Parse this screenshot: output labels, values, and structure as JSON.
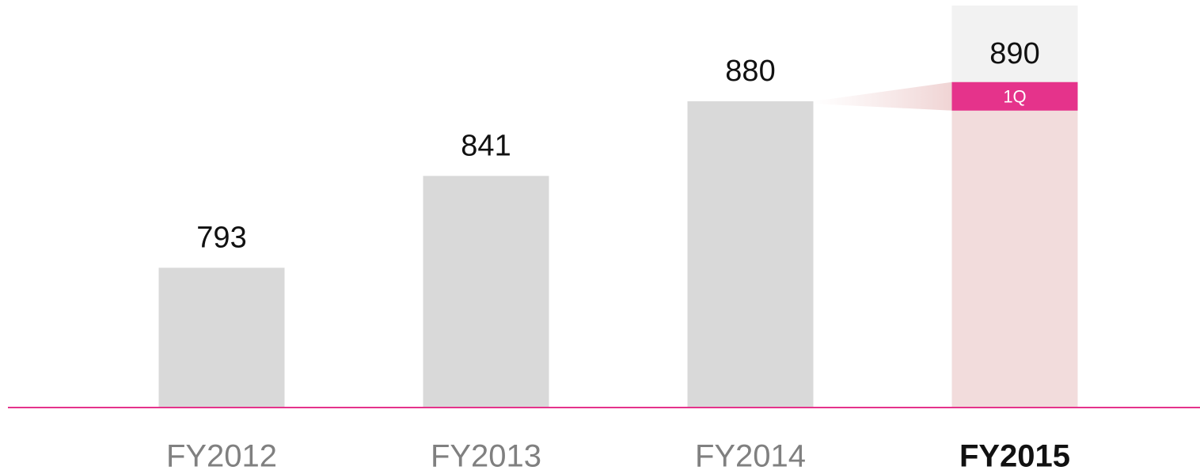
{
  "chart_data": {
    "type": "bar",
    "categories": [
      "FY2012",
      "FY2013",
      "FY2014",
      "FY2015"
    ],
    "values": [
      793,
      841,
      880,
      890
    ],
    "color": "#d9d9d9",
    "highlight_color": "#f2dcdc",
    "annotation_color": "#e5338b",
    "annotation": "1Q",
    "ylim": [
      720,
      930
    ]
  }
}
